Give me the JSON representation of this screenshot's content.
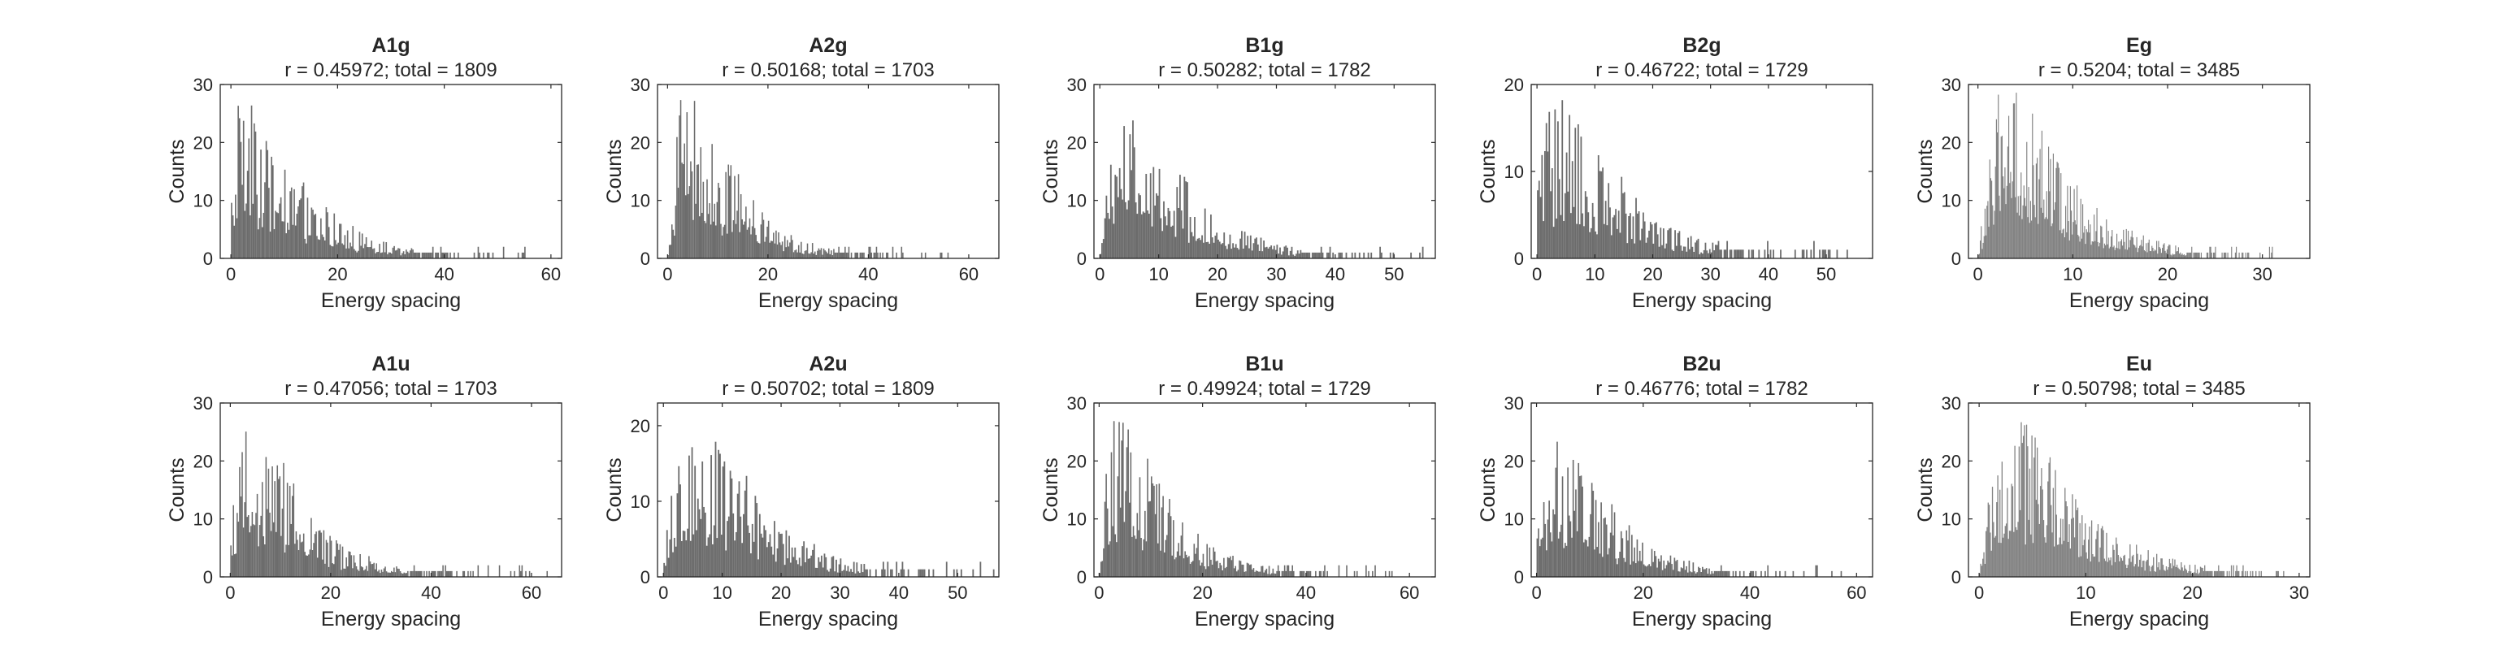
{
  "figure": {
    "background": "#ffffff"
  },
  "style": {
    "bar_color": "#646464",
    "axis_color": "#262626"
  },
  "chart_data": [
    {
      "type": "bar",
      "title": "A1g",
      "subtitle": "r = 0.45972; total = 1809",
      "xlabel": "Energy spacing",
      "ylabel": "Counts",
      "xlim": [
        -2,
        62
      ],
      "ylim": [
        0,
        30
      ],
      "xticks": [
        0,
        20,
        40,
        60
      ],
      "yticks": [
        0,
        10,
        20,
        30
      ],
      "grid": false,
      "legend": "none",
      "bin_width": 0.25,
      "max_x": 57,
      "envelope_x": [
        0,
        1,
        2,
        3,
        4,
        5,
        6,
        7,
        8,
        9,
        10,
        12,
        14,
        16,
        18,
        20,
        22,
        25,
        28,
        31,
        34,
        37,
        40,
        43,
        46,
        50,
        54,
        57
      ],
      "envelope_y": [
        9,
        15,
        16,
        15,
        14,
        13,
        12,
        11,
        11,
        10,
        10,
        9,
        7,
        6,
        5,
        4,
        3.2,
        2.5,
        1.8,
        1.2,
        1,
        0.7,
        0.5,
        0.4,
        0.3,
        0.2,
        0.15,
        0.1
      ]
    },
    {
      "type": "bar",
      "title": "A2g",
      "subtitle": "r = 0.50168; total = 1703",
      "xlabel": "Energy spacing",
      "ylabel": "Counts",
      "xlim": [
        -2,
        66
      ],
      "ylim": [
        0,
        30
      ],
      "xticks": [
        0,
        20,
        40,
        60
      ],
      "yticks": [
        0,
        10,
        20,
        30
      ],
      "grid": false,
      "legend": "none",
      "bin_width": 0.25,
      "max_x": 62,
      "envelope_x": [
        0,
        1,
        2,
        3,
        4,
        5,
        6,
        7,
        8,
        9,
        10,
        12,
        14,
        16,
        18,
        20,
        22,
        25,
        28,
        31,
        34,
        37,
        40,
        44,
        48,
        52,
        56,
        62
      ],
      "envelope_y": [
        1,
        7,
        15,
        17,
        17,
        16,
        15,
        14,
        13,
        12,
        11,
        9,
        8,
        6.5,
        5,
        4,
        3,
        2.2,
        1.6,
        1.2,
        0.9,
        0.7,
        0.5,
        0.35,
        0.25,
        0.2,
        0.15,
        0.1
      ]
    },
    {
      "type": "bar",
      "title": "B1g",
      "subtitle": "r = 0.50282; total = 1782",
      "xlabel": "Energy spacing",
      "ylabel": "Counts",
      "xlim": [
        -1,
        57
      ],
      "ylim": [
        0,
        30
      ],
      "xticks": [
        0,
        10,
        20,
        30,
        40,
        50
      ],
      "yticks": [
        0,
        10,
        20,
        30
      ],
      "grid": false,
      "legend": "none",
      "bin_width": 0.25,
      "max_x": 55,
      "envelope_x": [
        0,
        1,
        2,
        3,
        4,
        5,
        6,
        7,
        8,
        9,
        10,
        12,
        14,
        16,
        18,
        20,
        23,
        26,
        29,
        32,
        35,
        38,
        42,
        46,
        50,
        55
      ],
      "envelope_y": [
        1,
        8,
        14,
        15,
        15.5,
        15,
        14,
        13.5,
        13,
        12,
        11,
        9.5,
        8,
        6.5,
        5,
        4,
        3,
        2.2,
        1.6,
        1.2,
        0.9,
        0.6,
        0.4,
        0.3,
        0.2,
        0.1
      ]
    },
    {
      "type": "bar",
      "title": "B2g",
      "subtitle": "r = 0.46722; total = 1729",
      "xlabel": "Energy spacing",
      "ylabel": "Counts",
      "xlim": [
        -1,
        58
      ],
      "ylim": [
        0,
        20
      ],
      "xticks": [
        0,
        10,
        20,
        30,
        40,
        50
      ],
      "yticks": [
        0,
        10,
        20
      ],
      "grid": false,
      "legend": "none",
      "bin_width": 0.25,
      "max_x": 56,
      "envelope_x": [
        0,
        1,
        2,
        3,
        4,
        5,
        6,
        7,
        8,
        9,
        10,
        12,
        14,
        16,
        18,
        20,
        23,
        26,
        29,
        32,
        35,
        38,
        42,
        46,
        50,
        56
      ],
      "envelope_y": [
        6,
        9,
        10,
        10,
        10,
        9.5,
        9,
        8.8,
        8.5,
        8,
        7.5,
        6.5,
        5.5,
        4.5,
        3.5,
        2.8,
        2.2,
        1.6,
        1.2,
        0.9,
        0.7,
        0.5,
        0.35,
        0.25,
        0.2,
        0.1
      ]
    },
    {
      "type": "bar",
      "title": "Eg",
      "subtitle": "r = 0.5204; total = 3485",
      "xlabel": "Energy spacing",
      "ylabel": "Counts",
      "xlim": [
        -1,
        35
      ],
      "ylim": [
        0,
        30
      ],
      "xticks": [
        0,
        10,
        20,
        30
      ],
      "yticks": [
        0,
        10,
        20,
        30
      ],
      "grid": false,
      "legend": "none",
      "bin_width": 0.1,
      "max_x": 32,
      "envelope_x": [
        0,
        0.5,
        1,
        1.5,
        2,
        2.5,
        3,
        3.5,
        4,
        4.5,
        5,
        6,
        7,
        8,
        9,
        10,
        12,
        14,
        16,
        18,
        20,
        22,
        24,
        26,
        28,
        30,
        32
      ],
      "envelope_y": [
        1,
        5,
        9,
        13,
        15,
        16,
        16.5,
        16.5,
        16,
        15.5,
        15,
        13.5,
        12,
        10.5,
        9,
        7.5,
        5.5,
        4,
        2.8,
        2,
        1.4,
        1,
        0.6,
        0.4,
        0.3,
        0.2,
        0.1
      ]
    },
    {
      "type": "bar",
      "title": "A1u",
      "subtitle": "r = 0.47056; total = 1703",
      "xlabel": "Energy spacing",
      "ylabel": "Counts",
      "xlim": [
        -2,
        66
      ],
      "ylim": [
        0,
        30
      ],
      "xticks": [
        0,
        20,
        40,
        60
      ],
      "yticks": [
        0,
        10,
        20,
        30
      ],
      "grid": false,
      "legend": "none",
      "bin_width": 0.25,
      "max_x": 64,
      "envelope_x": [
        0,
        1,
        2,
        3,
        4,
        5,
        6,
        7,
        8,
        9,
        10,
        12,
        14,
        16,
        18,
        20,
        22,
        25,
        28,
        31,
        34,
        37,
        40,
        44,
        48,
        52,
        56,
        60,
        64
      ],
      "envelope_y": [
        6,
        11,
        13,
        14,
        14,
        14,
        13.5,
        13,
        13,
        12.5,
        12,
        10,
        8,
        6,
        5,
        4,
        3.2,
        2.5,
        1.9,
        1.5,
        1.1,
        0.8,
        0.6,
        0.4,
        0.3,
        0.2,
        0.15,
        0.1,
        0.1
      ]
    },
    {
      "type": "bar",
      "title": "A2u",
      "subtitle": "r = 0.50702; total = 1809",
      "xlabel": "Energy spacing",
      "ylabel": "Counts",
      "xlim": [
        -1,
        57
      ],
      "ylim": [
        0,
        23
      ],
      "xticks": [
        0,
        10,
        20,
        30,
        40,
        50
      ],
      "yticks": [
        0,
        10,
        20
      ],
      "grid": false,
      "legend": "none",
      "bin_width": 0.25,
      "max_x": 56,
      "envelope_x": [
        0,
        1,
        2,
        3,
        4,
        5,
        6,
        7,
        8,
        9,
        10,
        12,
        14,
        16,
        18,
        20,
        23,
        26,
        29,
        32,
        35,
        38,
        42,
        46,
        50,
        56
      ],
      "envelope_y": [
        1,
        6,
        9,
        10.5,
        11,
        11,
        11,
        10.5,
        10.5,
        10,
        9.5,
        8.5,
        7.5,
        6,
        5,
        4,
        3,
        2.2,
        1.6,
        1.2,
        0.9,
        0.6,
        0.4,
        0.3,
        0.2,
        0.1
      ]
    },
    {
      "type": "bar",
      "title": "B1u",
      "subtitle": "r = 0.49924; total = 1729",
      "xlabel": "Energy spacing",
      "ylabel": "Counts",
      "xlim": [
        -1,
        65
      ],
      "ylim": [
        0,
        30
      ],
      "xticks": [
        0,
        20,
        40,
        60
      ],
      "yticks": [
        0,
        10,
        20,
        30
      ],
      "grid": false,
      "legend": "none",
      "bin_width": 0.25,
      "max_x": 60,
      "envelope_x": [
        0,
        1,
        2,
        3,
        4,
        5,
        6,
        7,
        8,
        9,
        10,
        12,
        14,
        16,
        18,
        20,
        23,
        26,
        29,
        32,
        35,
        38,
        42,
        46,
        50,
        55,
        60
      ],
      "envelope_y": [
        1,
        9,
        14,
        15.5,
        16,
        15.5,
        15,
        14,
        13,
        12,
        11,
        9,
        7.5,
        6,
        5,
        4,
        3,
        2.2,
        1.6,
        1.2,
        0.9,
        0.6,
        0.4,
        0.3,
        0.2,
        0.15,
        0.1
      ]
    },
    {
      "type": "bar",
      "title": "B2u",
      "subtitle": "r = 0.46776; total = 1782",
      "xlabel": "Energy spacing",
      "ylabel": "Counts",
      "xlim": [
        -1,
        63
      ],
      "ylim": [
        0,
        30
      ],
      "xticks": [
        0,
        20,
        40,
        60
      ],
      "yticks": [
        0,
        10,
        20,
        30
      ],
      "grid": false,
      "legend": "none",
      "bin_width": 0.25,
      "max_x": 60,
      "envelope_x": [
        0,
        1,
        2,
        3,
        4,
        5,
        6,
        7,
        8,
        9,
        10,
        12,
        14,
        16,
        18,
        20,
        23,
        26,
        29,
        32,
        35,
        38,
        42,
        46,
        50,
        55,
        60
      ],
      "envelope_y": [
        6,
        11,
        12.5,
        13,
        13,
        12.5,
        12,
        11.5,
        11,
        10.5,
        10,
        8.5,
        7,
        5.5,
        4.5,
        3.5,
        2.6,
        2,
        1.5,
        1.1,
        0.8,
        0.6,
        0.4,
        0.3,
        0.2,
        0.15,
        0.1
      ]
    },
    {
      "type": "bar",
      "title": "Eu",
      "subtitle": "r = 0.50798; total = 3485",
      "xlabel": "Energy spacing",
      "ylabel": "Counts",
      "xlim": [
        -1,
        31
      ],
      "ylim": [
        0,
        30
      ],
      "xticks": [
        0,
        10,
        20,
        30
      ],
      "yticks": [
        0,
        10,
        20,
        30
      ],
      "grid": false,
      "legend": "none",
      "bin_width": 0.1,
      "max_x": 29,
      "envelope_x": [
        0,
        0.5,
        1,
        1.5,
        2,
        2.5,
        3,
        3.5,
        4,
        4.5,
        5,
        6,
        7,
        8,
        9,
        10,
        12,
        14,
        16,
        18,
        20,
        22,
        24,
        26,
        29
      ],
      "envelope_y": [
        1,
        5,
        9,
        12,
        14,
        15,
        15.5,
        15.5,
        15,
        14.5,
        14,
        12.5,
        11,
        9.5,
        8,
        6.5,
        5,
        3.5,
        2.5,
        1.8,
        1.2,
        0.8,
        0.5,
        0.3,
        0.1
      ]
    }
  ]
}
